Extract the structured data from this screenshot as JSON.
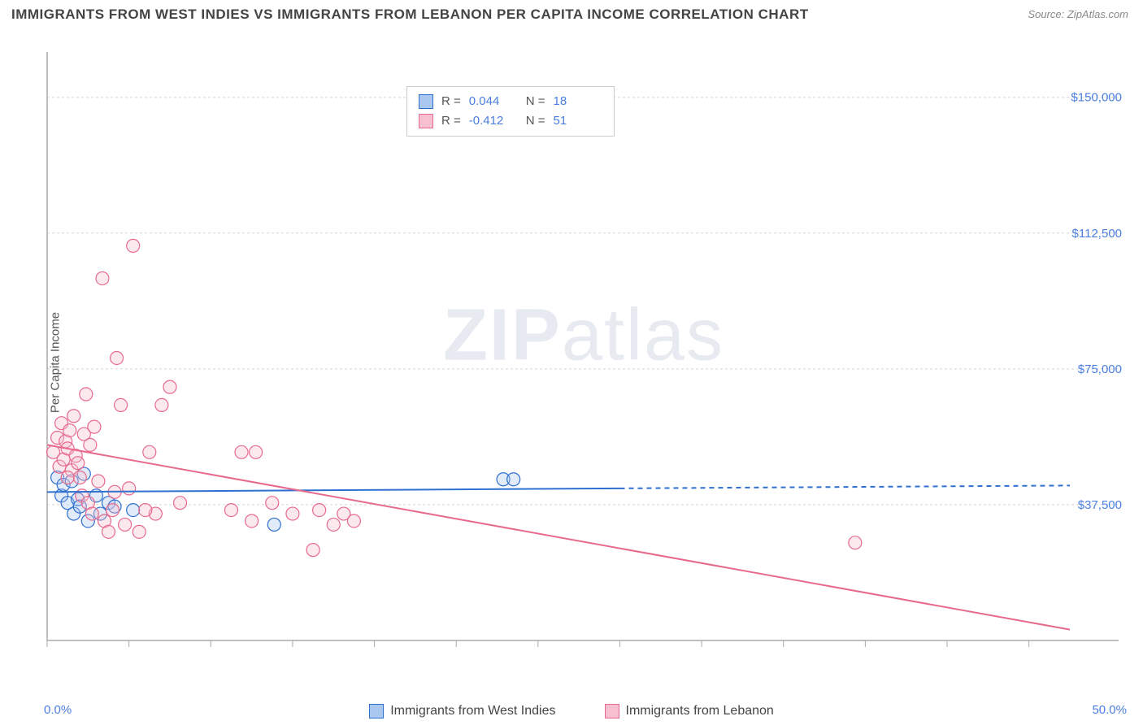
{
  "header": {
    "title": "IMMIGRANTS FROM WEST INDIES VS IMMIGRANTS FROM LEBANON PER CAPITA INCOME CORRELATION CHART",
    "source": "Source: ZipAtlas.com"
  },
  "watermark": {
    "zip": "ZIP",
    "atlas": "atlas"
  },
  "chart": {
    "type": "scatter",
    "y_axis_label": "Per Capita Income",
    "background_color": "#ffffff",
    "grid_color": "#d5d5d5",
    "axis_color": "#aaaaaa",
    "label_color": "#4a7ee0",
    "title_color": "#444444",
    "xlim": [
      0,
      50
    ],
    "ylim": [
      0,
      162500
    ],
    "x_ticks_pct": [
      0,
      4,
      8,
      12,
      16,
      20,
      24,
      28,
      32,
      36,
      40,
      44,
      48
    ],
    "x_tick_labels": {
      "min": "0.0%",
      "max": "50.0%"
    },
    "y_grid": [
      {
        "v": 37500,
        "label": "$37,500"
      },
      {
        "v": 75000,
        "label": "$75,000"
      },
      {
        "v": 112500,
        "label": "$112,500"
      },
      {
        "v": 150000,
        "label": "$150,000"
      }
    ],
    "marker_radius": 8,
    "marker_stroke_width": 1.2,
    "marker_fill_opacity": 0.35,
    "line_width": 2,
    "series": [
      {
        "key": "west_indies",
        "name": "Immigrants from West Indies",
        "color_stroke": "#2f6fd0",
        "color_fill": "#a9c7ef",
        "r": 0.044,
        "n": 18,
        "regression": {
          "x1": 0,
          "y1": 41000,
          "x2": 28,
          "y2": 42000
        },
        "regression_dashed_to": 50,
        "points": [
          [
            0.5,
            45000
          ],
          [
            0.7,
            40000
          ],
          [
            0.8,
            43000
          ],
          [
            1.0,
            38000
          ],
          [
            1.2,
            44000
          ],
          [
            1.3,
            35000
          ],
          [
            1.5,
            39000
          ],
          [
            1.6,
            37000
          ],
          [
            1.8,
            46000
          ],
          [
            2.0,
            33000
          ],
          [
            2.4,
            40000
          ],
          [
            2.6,
            35000
          ],
          [
            3.0,
            38000
          ],
          [
            3.3,
            37000
          ],
          [
            4.2,
            36000
          ],
          [
            11.1,
            32000
          ],
          [
            22.3,
            44500
          ],
          [
            22.8,
            44500
          ]
        ]
      },
      {
        "key": "lebanon",
        "name": "Immigrants from Lebanon",
        "color_stroke": "#e76a8d",
        "color_fill": "#f7bfcf",
        "r": -0.412,
        "n": 51,
        "regression": {
          "x1": 0,
          "y1": 54000,
          "x2": 50,
          "y2": 3000
        },
        "points": [
          [
            0.3,
            52000
          ],
          [
            0.5,
            56000
          ],
          [
            0.6,
            48000
          ],
          [
            0.7,
            60000
          ],
          [
            0.8,
            50000
          ],
          [
            0.9,
            55000
          ],
          [
            1.0,
            53000
          ],
          [
            1.1,
            58000
          ],
          [
            1.2,
            47000
          ],
          [
            1.3,
            62000
          ],
          [
            1.4,
            51000
          ],
          [
            1.5,
            49000
          ],
          [
            1.6,
            45000
          ],
          [
            1.7,
            40000
          ],
          [
            1.8,
            57000
          ],
          [
            1.9,
            68000
          ],
          [
            2.0,
            38000
          ],
          [
            2.2,
            35000
          ],
          [
            2.3,
            59000
          ],
          [
            2.5,
            44000
          ],
          [
            2.7,
            100000
          ],
          [
            2.8,
            33000
          ],
          [
            3.0,
            30000
          ],
          [
            3.2,
            36000
          ],
          [
            3.4,
            78000
          ],
          [
            3.6,
            65000
          ],
          [
            3.8,
            32000
          ],
          [
            4.0,
            42000
          ],
          [
            4.2,
            109000
          ],
          [
            4.5,
            30000
          ],
          [
            5.0,
            52000
          ],
          [
            5.3,
            35000
          ],
          [
            5.6,
            65000
          ],
          [
            6.0,
            70000
          ],
          [
            6.5,
            38000
          ],
          [
            3.3,
            41000
          ],
          [
            9.0,
            36000
          ],
          [
            9.5,
            52000
          ],
          [
            10.0,
            33000
          ],
          [
            10.2,
            52000
          ],
          [
            11.0,
            38000
          ],
          [
            12.0,
            35000
          ],
          [
            13.0,
            25000
          ],
          [
            13.3,
            36000
          ],
          [
            14.0,
            32000
          ],
          [
            14.5,
            35000
          ],
          [
            15.0,
            33000
          ],
          [
            4.8,
            36000
          ],
          [
            2.1,
            54000
          ],
          [
            39.5,
            27000
          ],
          [
            1.0,
            45000
          ]
        ]
      }
    ]
  },
  "stats_box": {
    "r_label": "R  =",
    "n_label": "N  ="
  },
  "legend": {
    "items": [
      {
        "series": "west_indies"
      },
      {
        "series": "lebanon"
      }
    ]
  }
}
